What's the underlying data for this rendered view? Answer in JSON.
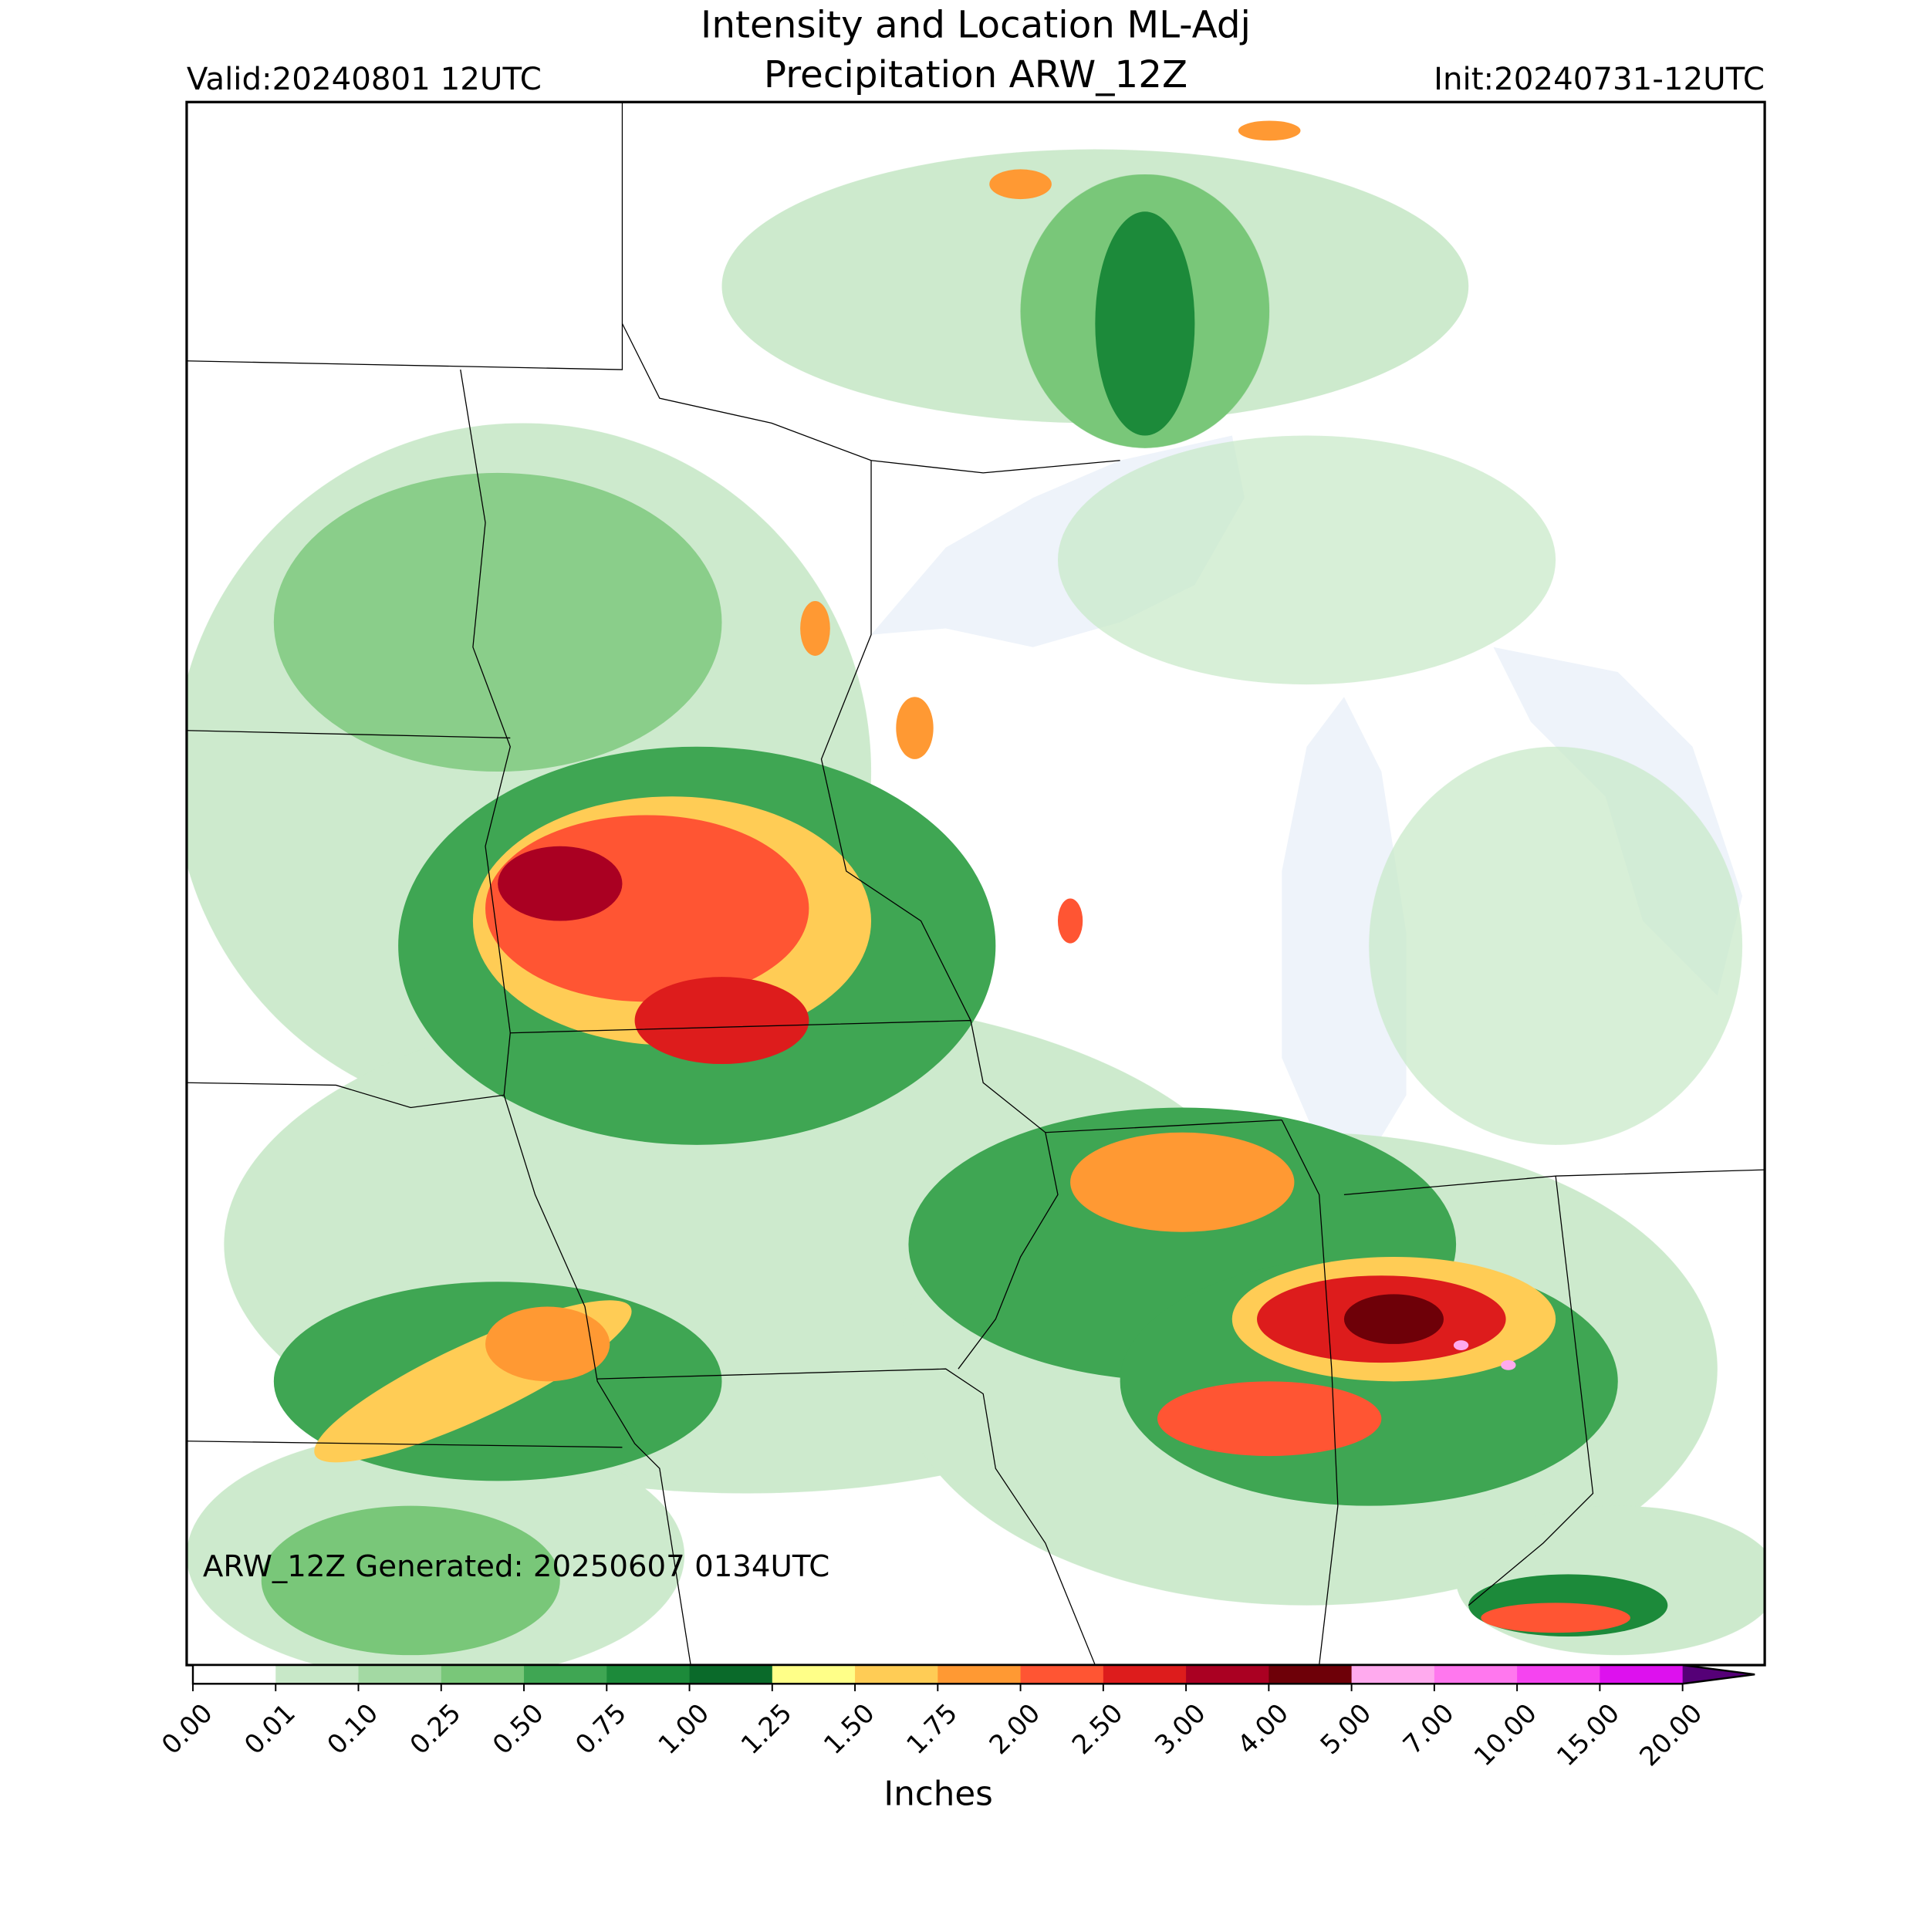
{
  "header": {
    "title_line1": "Intensity and Location ML-Adj",
    "title_line2": "Precipitation ARW_12Z",
    "valid": "Valid:20240801 12UTC",
    "init": "Init:20240731-12UTC"
  },
  "footnote": "ARW_12Z Generated: 20250607 0134UTC",
  "colorbar": {
    "label": "Inches",
    "ticks": [
      "0.00",
      "0.01",
      "0.10",
      "0.25",
      "0.50",
      "0.75",
      "1.00",
      "1.25",
      "1.50",
      "1.75",
      "2.00",
      "2.50",
      "3.00",
      "4.00",
      "5.00",
      "7.00",
      "10.00",
      "15.00",
      "20.00"
    ],
    "colors": [
      "#ffffff",
      "#c8e8c8",
      "#a3d9a3",
      "#79c779",
      "#3fa653",
      "#1c8a3a",
      "#0a6a2a",
      "#ffff88",
      "#ffcc55",
      "#ff9933",
      "#ff5533",
      "#dd1c1c",
      "#aa0022",
      "#6e0008",
      "#ffaaee",
      "#ff77ee",
      "#f544f0",
      "#dd11ee",
      "#9911cc"
    ],
    "extend_color": "#550077"
  }
}
